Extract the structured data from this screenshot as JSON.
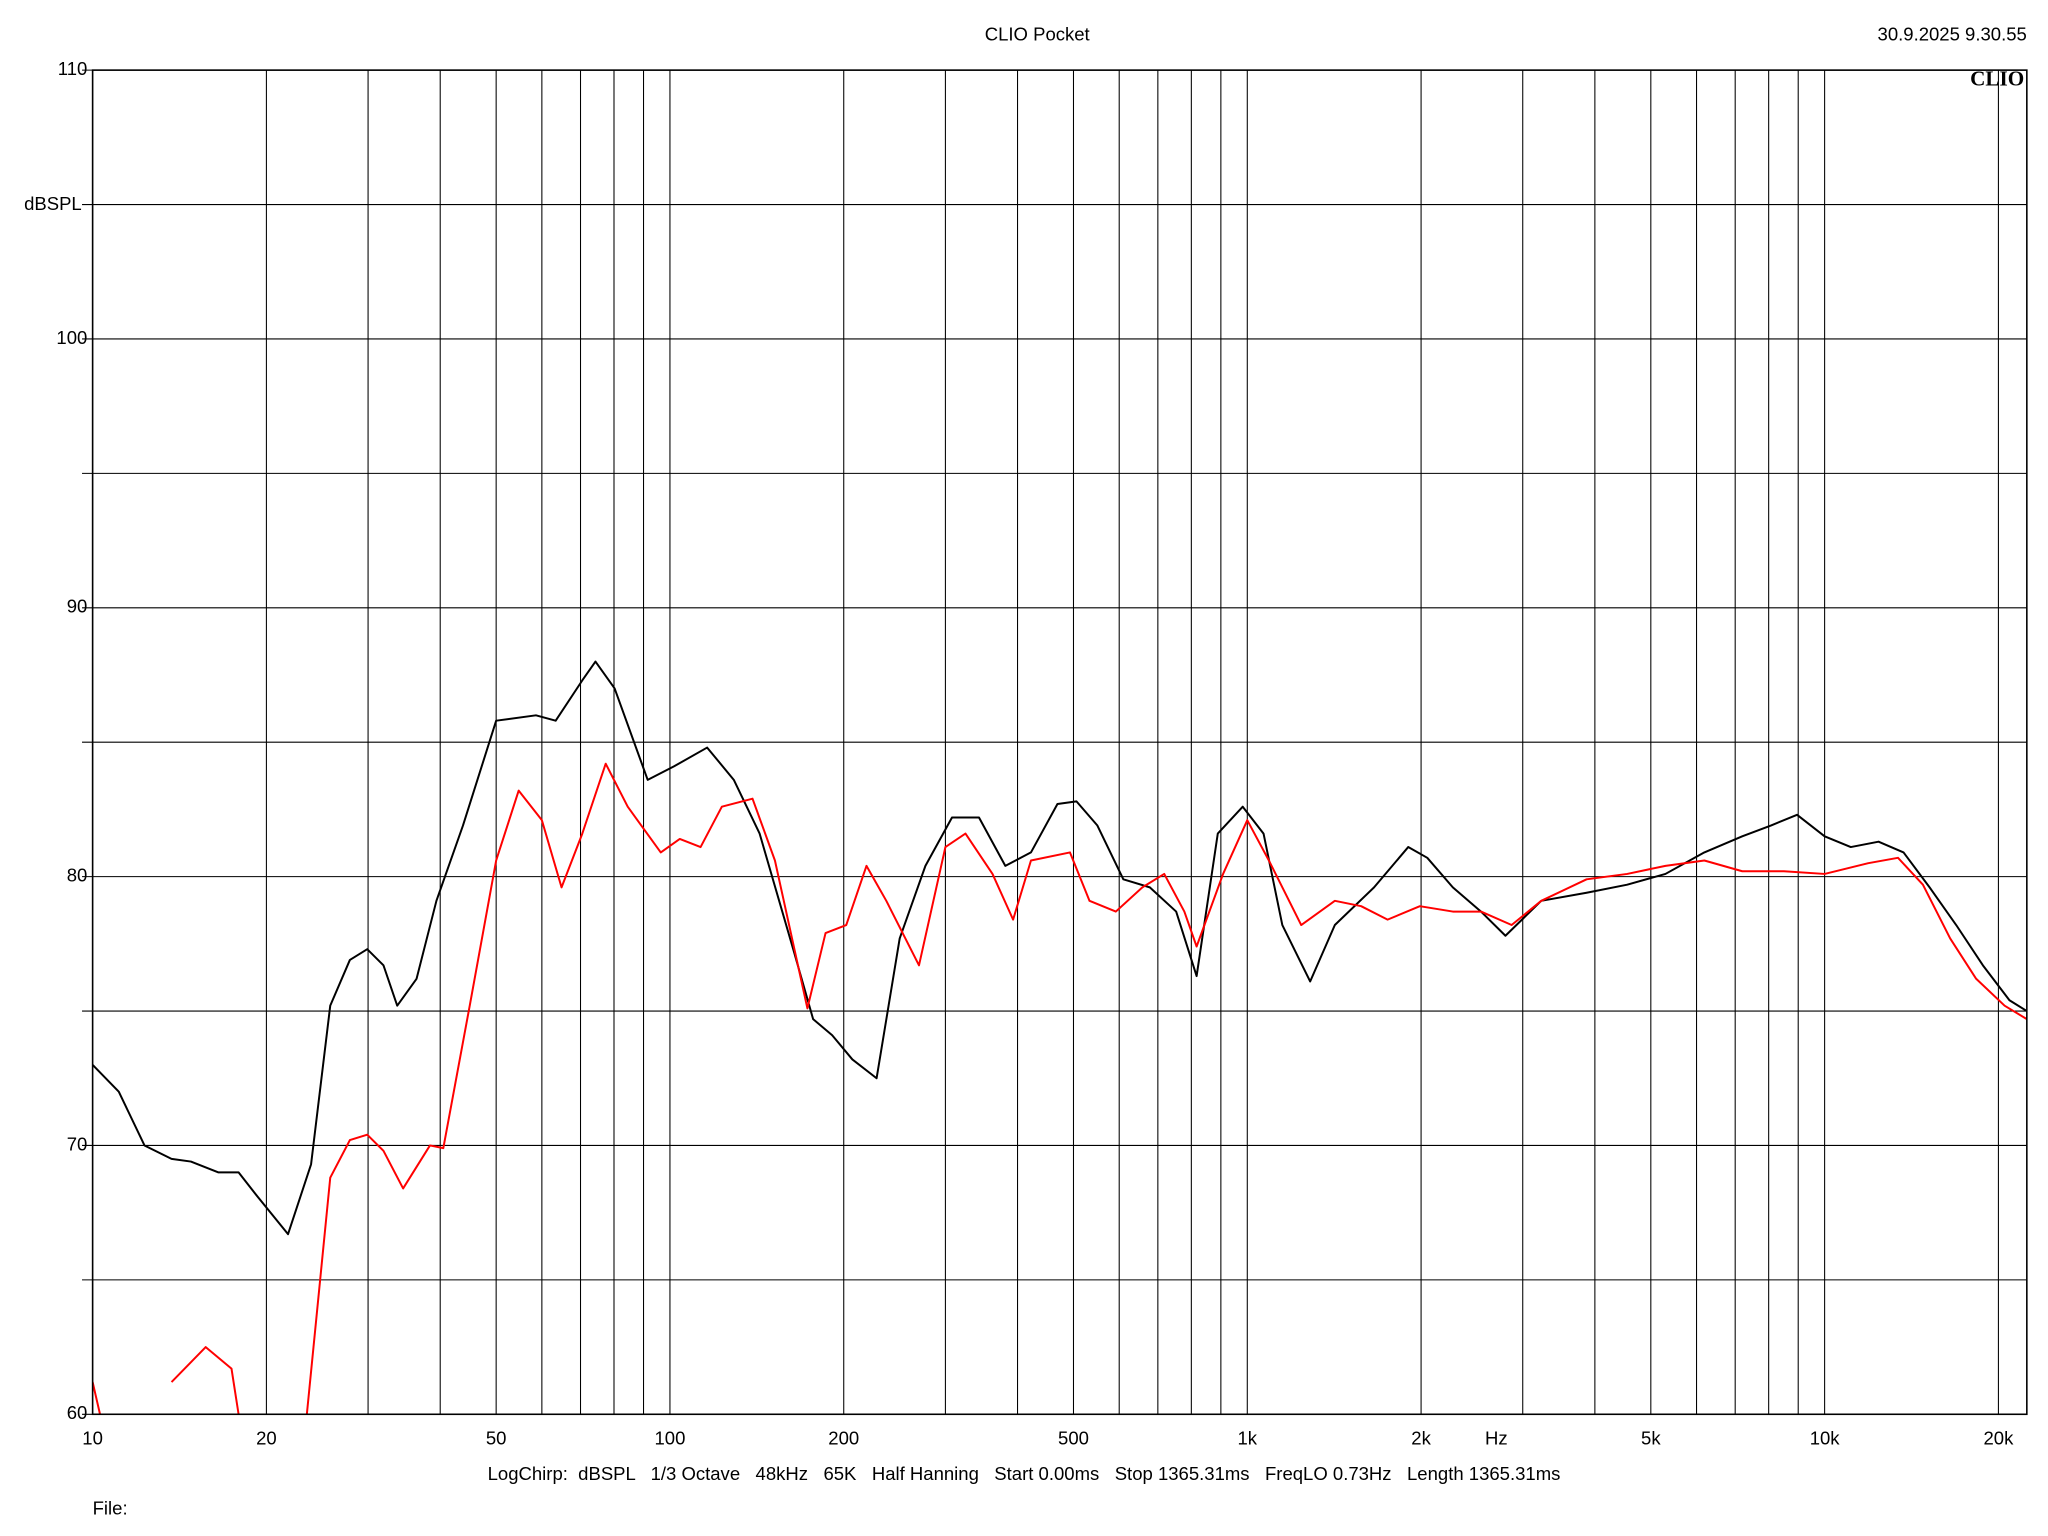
{
  "chart_data": {
    "type": "line",
    "title": "CLIO Pocket",
    "timestamp": "30.9.2025 9.30.55",
    "logo": "CLIO",
    "y_label": "dBSPL",
    "x_label": "Hz",
    "footer": "LogChirp:  dBSPL   1/3 Octave   48kHz   65K   Half Hanning   Start 0.00ms   Stop 1365.31ms   FreqLO 0.73Hz   Length 1365.31ms",
    "file_label": "File:",
    "x_log": true,
    "grid": true,
    "xlim": [
      10,
      22400
    ],
    "ylim": [
      60,
      110
    ],
    "xticks": [
      10,
      20,
      50,
      100,
      200,
      500,
      {
        "value": 1000,
        "label": "1k"
      },
      {
        "value": 2000,
        "label": "2k"
      },
      {
        "value": 5000,
        "label": "5k"
      },
      {
        "value": 10000,
        "label": "10k"
      },
      {
        "value": 20000,
        "label": "20k"
      }
    ],
    "x_minor_ticks": [
      30,
      40,
      60,
      70,
      80,
      90,
      300,
      400,
      600,
      700,
      800,
      900,
      3000,
      4000,
      6000,
      7000,
      8000,
      9000
    ],
    "yticks": [
      60,
      70,
      80,
      90,
      100,
      110
    ],
    "y_minor_ticks": [
      65,
      75,
      85,
      95,
      105
    ],
    "series": [
      {
        "name": "black",
        "color": "#000000",
        "x": [
          10,
          11.1,
          12.3,
          13.7,
          14.8,
          16.5,
          17.9,
          19.3,
          21.8,
          23.9,
          25.8,
          27.9,
          29.9,
          31.9,
          33.7,
          36.4,
          39.4,
          43.8,
          50,
          58.6,
          63.4,
          70.5,
          74.3,
          80.2,
          91.5,
          101.6,
          116,
          129,
          143,
          164,
          177,
          191,
          207,
          228,
          250,
          277,
          308,
          343,
          381,
          422,
          469,
          506,
          550,
          610,
          678,
          753,
          817,
          889,
          982,
          1067,
          1150,
          1285,
          1418,
          1658,
          1900,
          2050,
          2270,
          2540,
          2800,
          3230,
          3870,
          4550,
          5300,
          6190,
          7200,
          8070,
          8960,
          10000,
          11100,
          12400,
          13700,
          15200,
          16900,
          18800,
          20900,
          22400
        ],
        "values": [
          73.0,
          72.0,
          70.0,
          69.5,
          69.4,
          69.0,
          69.0,
          68.1,
          66.7,
          69.3,
          75.2,
          76.9,
          77.3,
          76.7,
          75.2,
          76.2,
          79.1,
          81.9,
          85.8,
          86.0,
          85.8,
          87.3,
          88.0,
          87.0,
          83.6,
          84.1,
          84.8,
          83.6,
          81.6,
          77.2,
          74.7,
          74.1,
          73.2,
          72.5,
          77.7,
          80.4,
          82.2,
          82.2,
          80.4,
          80.9,
          82.7,
          82.8,
          81.9,
          79.9,
          79.6,
          78.7,
          76.3,
          81.6,
          82.6,
          81.6,
          78.2,
          76.1,
          78.2,
          79.6,
          81.1,
          80.7,
          79.6,
          78.7,
          77.8,
          79.1,
          79.4,
          79.7,
          80.1,
          80.9,
          81.5,
          81.9,
          82.3,
          81.5,
          81.1,
          81.3,
          80.9,
          79.6,
          78.2,
          76.7,
          75.4,
          75.0
        ]
      },
      {
        "name": "red",
        "color": "#ff0000",
        "x": [
          10,
          10.3,
          12,
          13.7,
          15.7,
          17.4,
          17.9,
          20,
          23.5,
          25.8,
          27.9,
          29.9,
          31.9,
          34.5,
          38.4,
          40.5,
          45,
          50,
          54.7,
          60,
          64.9,
          70.5,
          77.4,
          84.5,
          96.4,
          104,
          113,
          123,
          139,
          152,
          173,
          186,
          202,
          219,
          237,
          270,
          300,
          325,
          362,
          393,
          422,
          493,
          533,
          592,
          658,
          718,
          778,
          817,
          908,
          1000,
          1090,
          1240,
          1418,
          1575,
          1750,
          1990,
          2270,
          2540,
          2870,
          3230,
          3870,
          4550,
          5300,
          6190,
          7200,
          8500,
          10000,
          11900,
          13400,
          14800,
          16500,
          18300,
          20500,
          22400
        ],
        "values": [
          61.2,
          60.0,
          null,
          61.2,
          62.5,
          61.7,
          60.0,
          null,
          60.0,
          68.8,
          70.2,
          70.4,
          69.8,
          68.4,
          70.0,
          69.9,
          75.2,
          80.6,
          83.2,
          82.1,
          79.6,
          81.6,
          84.2,
          82.6,
          80.9,
          81.4,
          81.1,
          82.6,
          82.9,
          80.6,
          75.1,
          77.9,
          78.2,
          80.4,
          79.1,
          76.7,
          81.1,
          81.6,
          80.1,
          78.4,
          80.6,
          80.9,
          79.1,
          78.7,
          79.6,
          80.1,
          78.7,
          77.4,
          80.1,
          82.1,
          80.6,
          78.2,
          79.1,
          78.9,
          78.4,
          78.9,
          78.7,
          78.7,
          78.2,
          79.1,
          79.9,
          80.1,
          80.4,
          80.6,
          80.2,
          80.2,
          80.1,
          80.5,
          80.7,
          79.7,
          77.7,
          76.2,
          75.2,
          74.7
        ]
      }
    ]
  }
}
